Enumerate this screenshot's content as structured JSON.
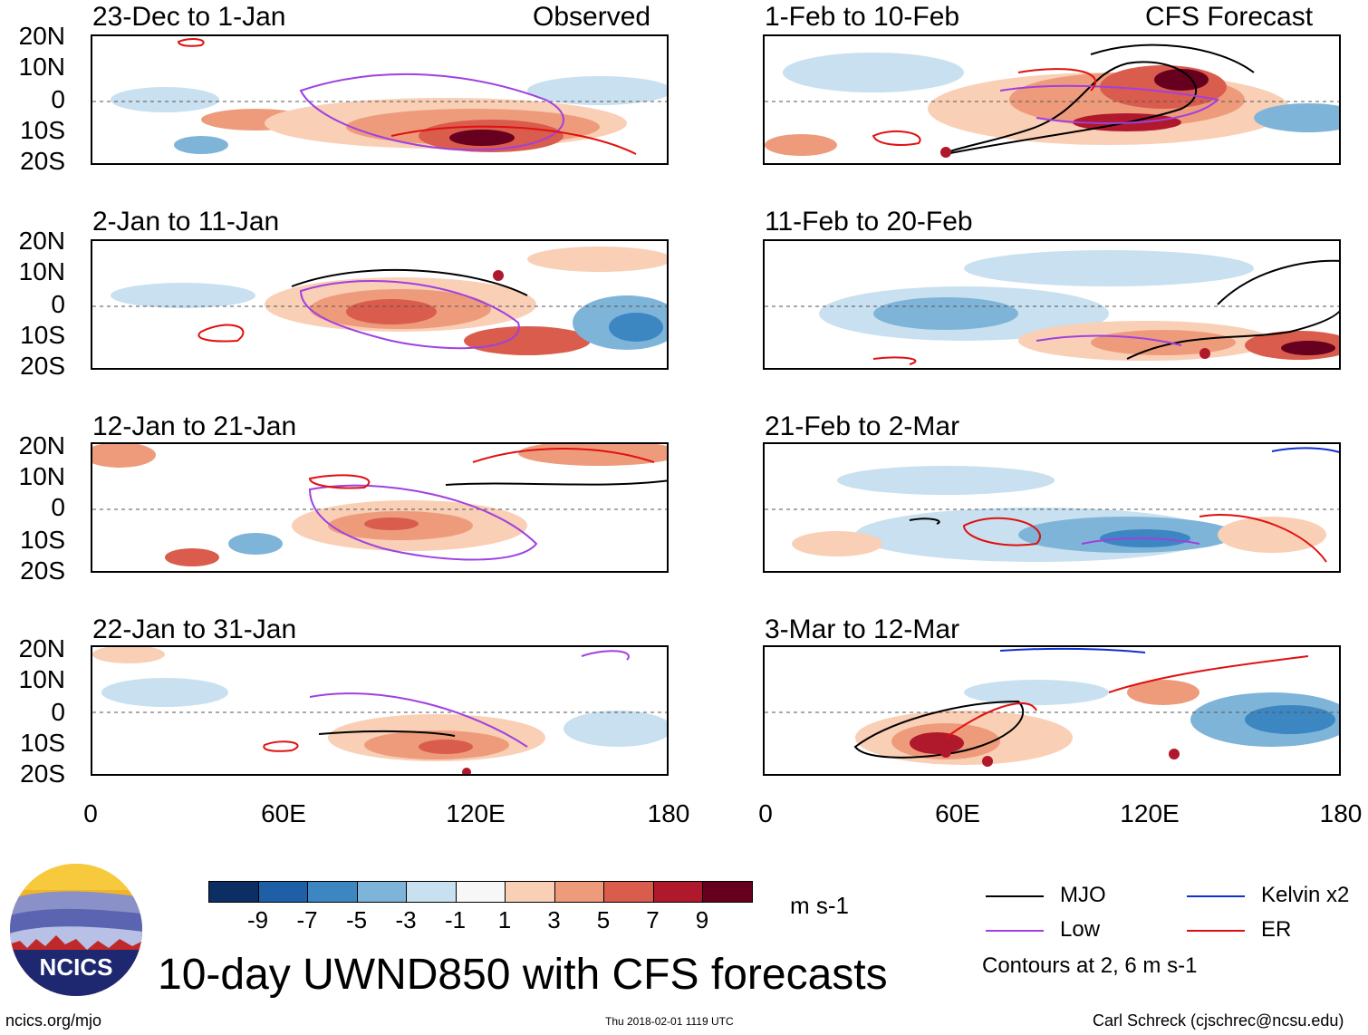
{
  "panels": [
    {
      "title": "23-Dec to 1-Jan",
      "tag": "Observed"
    },
    {
      "title": "2-Jan to 11-Jan",
      "tag": ""
    },
    {
      "title": "12-Jan to 21-Jan",
      "tag": ""
    },
    {
      "title": "22-Jan to 31-Jan",
      "tag": ""
    },
    {
      "title": "1-Feb to 10-Feb",
      "tag": "CFS Forecast"
    },
    {
      "title": "11-Feb to 20-Feb",
      "tag": ""
    },
    {
      "title": "21-Feb to 2-Mar",
      "tag": ""
    },
    {
      "title": "3-Mar to 12-Mar",
      "tag": ""
    }
  ],
  "lat_labels": [
    "20N",
    "10N",
    "0",
    "10S",
    "20S"
  ],
  "lon_labels": [
    "0",
    "60E",
    "120E",
    "180"
  ],
  "colorbar": {
    "labels": [
      "-9",
      "-7",
      "-5",
      "-3",
      "-1",
      "1",
      "3",
      "5",
      "7",
      "9"
    ],
    "colors": [
      "#0b2f63",
      "#1f5fa6",
      "#3c86c2",
      "#7fb4d9",
      "#c8e0ef",
      "#f7f7f7",
      "#f9cfb6",
      "#ee9b7c",
      "#d95c4c",
      "#b0182c",
      "#67001f"
    ],
    "unit": "m s-1"
  },
  "legend": {
    "mjo": {
      "label": "MJO",
      "color": "#000000"
    },
    "low": {
      "label": "Low",
      "color": "#a040e0"
    },
    "kelvin": {
      "label": "Kelvin x2",
      "color": "#1030d0"
    },
    "er": {
      "label": "ER",
      "color": "#e01010"
    },
    "note": "Contours at 2, 6 m s-1"
  },
  "logo": {
    "text": "NCICS"
  },
  "main_title": "10-day UWND850 with CFS forecasts",
  "footer": {
    "site": "ncics.org/mjo",
    "timestamp": "Thu 2018-02-01 1119 UTC",
    "author": "Carl Schreck (cjschrec@ncsu.edu)"
  }
}
